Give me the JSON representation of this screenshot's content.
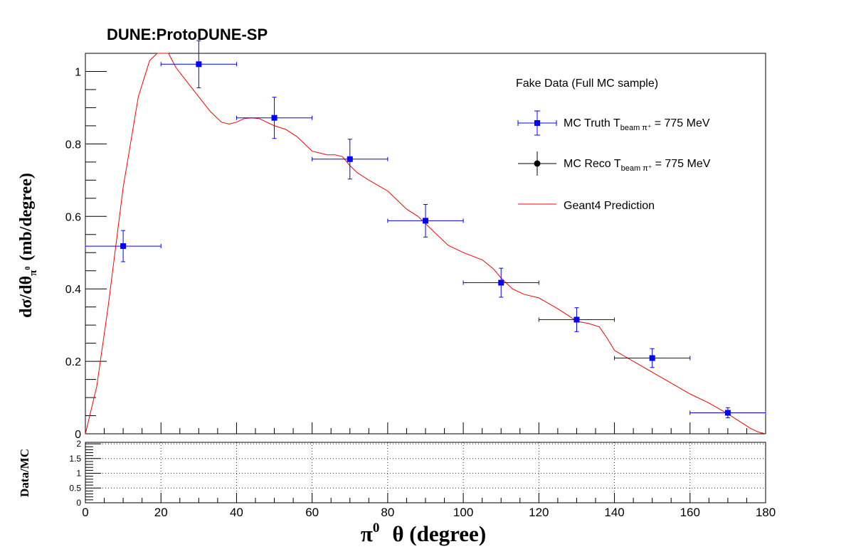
{
  "chart_data": [
    {
      "type": "scatter",
      "title": "DUNE:ProtoDUNE-SP",
      "xlabel_symbol": "π",
      "xlabel_sup": "0",
      "xlabel_rest": "θ (degree)",
      "ylabel_main": "dσ/dθ",
      "ylabel_sub": "π",
      "ylabel_subsup": "0",
      "ylabel_rest": "(mb/degree)",
      "xlim": [
        0,
        180
      ],
      "ylim": [
        0,
        1.05
      ],
      "yticks": [
        0,
        0.2,
        0.4,
        0.6,
        0.8,
        1
      ],
      "ytick_labels": [
        "0",
        "0.2",
        "0.4",
        "0.6",
        "0.8",
        "1"
      ],
      "legend": {
        "header": "Fake Data (Full MC sample)",
        "truth_main": "MC Truth T",
        "truth_sub": "beam π⁺",
        "truth_value": "= 775 MeV",
        "reco_main": "MC Reco T",
        "reco_sub": "beam π⁺",
        "reco_value": "= 775 MeV",
        "prediction": "Geant4 Prediction",
        "placement": "top-right"
      },
      "series": [
        {
          "name": "MC Truth",
          "color": "#0000ff",
          "marker": "square",
          "x": [
            10,
            30,
            50,
            70,
            90,
            110,
            130,
            150,
            170
          ],
          "xerr": [
            10,
            10,
            10,
            10,
            10,
            10,
            10,
            10,
            10
          ],
          "y": [
            0.518,
            1.02,
            0.872,
            0.758,
            0.588,
            0.417,
            0.315,
            0.209,
            0.058
          ],
          "yerr": [
            0.043,
            0.065,
            0.057,
            0.055,
            0.045,
            0.04,
            0.033,
            0.026,
            0.014
          ]
        },
        {
          "name": "Geant4 Prediction",
          "color": "#ff0000",
          "style": "line",
          "x": [
            0,
            3,
            6,
            10,
            14,
            17,
            19,
            20,
            22,
            24,
            27,
            30,
            33,
            36,
            38,
            40,
            42,
            44,
            46,
            48,
            50,
            53,
            56,
            58,
            60,
            62,
            64,
            66,
            68,
            70,
            72,
            75,
            80,
            85,
            88,
            90,
            93,
            96,
            100,
            105,
            108,
            110,
            113,
            116,
            120,
            125,
            128,
            130,
            133,
            136,
            138,
            140,
            145,
            150,
            155,
            160,
            165,
            170,
            173,
            176,
            178,
            180
          ],
          "y": [
            0.0,
            0.13,
            0.35,
            0.68,
            0.93,
            1.03,
            1.06,
            1.07,
            1.06,
            1.01,
            0.97,
            0.93,
            0.89,
            0.86,
            0.855,
            0.86,
            0.87,
            0.872,
            0.87,
            0.86,
            0.85,
            0.84,
            0.82,
            0.8,
            0.78,
            0.775,
            0.77,
            0.77,
            0.765,
            0.74,
            0.72,
            0.7,
            0.67,
            0.62,
            0.6,
            0.58,
            0.55,
            0.52,
            0.5,
            0.48,
            0.455,
            0.43,
            0.4,
            0.385,
            0.375,
            0.345,
            0.325,
            0.31,
            0.305,
            0.295,
            0.265,
            0.23,
            0.2,
            0.17,
            0.14,
            0.11,
            0.085,
            0.055,
            0.035,
            0.015,
            0.005,
            0.0
          ]
        }
      ]
    },
    {
      "type": "scatter",
      "ylabel": "Data/MC",
      "xlim": [
        0,
        180
      ],
      "ylim": [
        0,
        2.05
      ],
      "xticks": [
        0,
        20,
        40,
        60,
        80,
        100,
        120,
        140,
        160,
        180
      ],
      "xtick_labels": [
        "0",
        "20",
        "40",
        "60",
        "80",
        "100",
        "120",
        "140",
        "160",
        "180"
      ],
      "yticks": [
        0,
        0.5,
        1,
        1.5,
        2
      ],
      "ytick_labels": [
        "0",
        "0.5",
        "1",
        "1.5",
        "2"
      ],
      "grid": true,
      "series": []
    }
  ]
}
